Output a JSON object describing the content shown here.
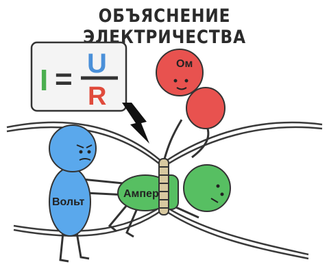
{
  "title": "ОБЪЯСНЕНИЕ ЭЛЕКТРИЧЕСТВА",
  "formula": {
    "lhs": "I",
    "eq": "=",
    "numerator": "U",
    "denominator": "R"
  },
  "characters": {
    "ohm": {
      "label": "Ом",
      "color": "#e8524f"
    },
    "volt": {
      "label": "Вольт",
      "color": "#5aa8ec"
    },
    "ampere": {
      "label": "Ампер",
      "color": "#57bf62"
    }
  },
  "colors": {
    "I": "#4caf50",
    "U": "#4a90d9",
    "R": "#e04b3c",
    "lightning": "#111111"
  }
}
